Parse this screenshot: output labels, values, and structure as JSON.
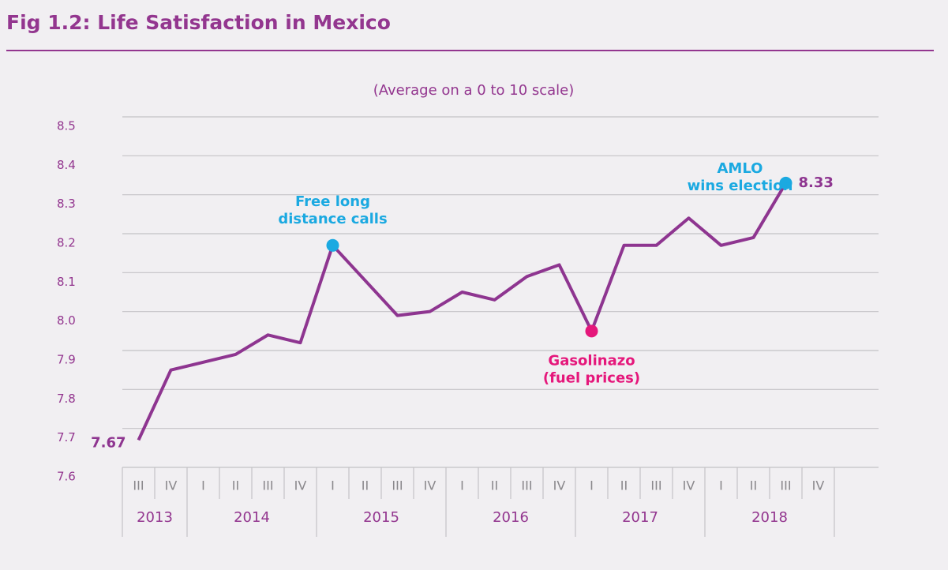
{
  "chart_data": {
    "type": "line",
    "title": "Fig 1.2: Life Satisfaction in Mexico",
    "subtitle": "(Average on a 0 to 10 scale)",
    "categories": [
      "III",
      "IV",
      "I",
      "II",
      "III",
      "IV",
      "I",
      "II",
      "III",
      "IV",
      "I",
      "II",
      "III",
      "IV",
      "I",
      "II",
      "III",
      "IV",
      "I",
      "II",
      "III",
      "IV"
    ],
    "years": [
      "2013",
      "2013",
      "2014",
      "2014",
      "2014",
      "2014",
      "2015",
      "2015",
      "2015",
      "2015",
      "2016",
      "2016",
      "2016",
      "2016",
      "2017",
      "2017",
      "2017",
      "2017",
      "2018",
      "2018",
      "2018",
      "2018"
    ],
    "values": [
      7.67,
      7.85,
      7.87,
      7.89,
      7.94,
      7.92,
      8.17,
      8.08,
      7.99,
      8.0,
      8.05,
      8.03,
      8.09,
      8.12,
      7.95,
      8.17,
      8.17,
      8.24,
      8.17,
      8.19,
      8.33,
      null
    ],
    "color": "#8e3590",
    "ylim": [
      7.6,
      8.5
    ],
    "yticks": [
      7.6,
      7.7,
      7.8,
      7.9,
      {
        "value": 8,
        "label": "8.0"
      },
      8.1,
      8.2,
      8.3,
      8.4,
      8.5
    ],
    "grid": true,
    "labeled_points": [
      0,
      20
    ],
    "annotations": [
      {
        "text": [
          "Free long",
          "distance calls"
        ],
        "point": 6,
        "color": "#1ba9e1",
        "position": "above"
      },
      {
        "text": [
          "Gasolinazo",
          "(fuel prices)"
        ],
        "point": 14,
        "color": "#e5177b",
        "position": "below"
      },
      {
        "text": [
          "AMLO",
          "wins election"
        ],
        "point": 20,
        "color": "#1ba9e1",
        "position": "left"
      }
    ]
  }
}
